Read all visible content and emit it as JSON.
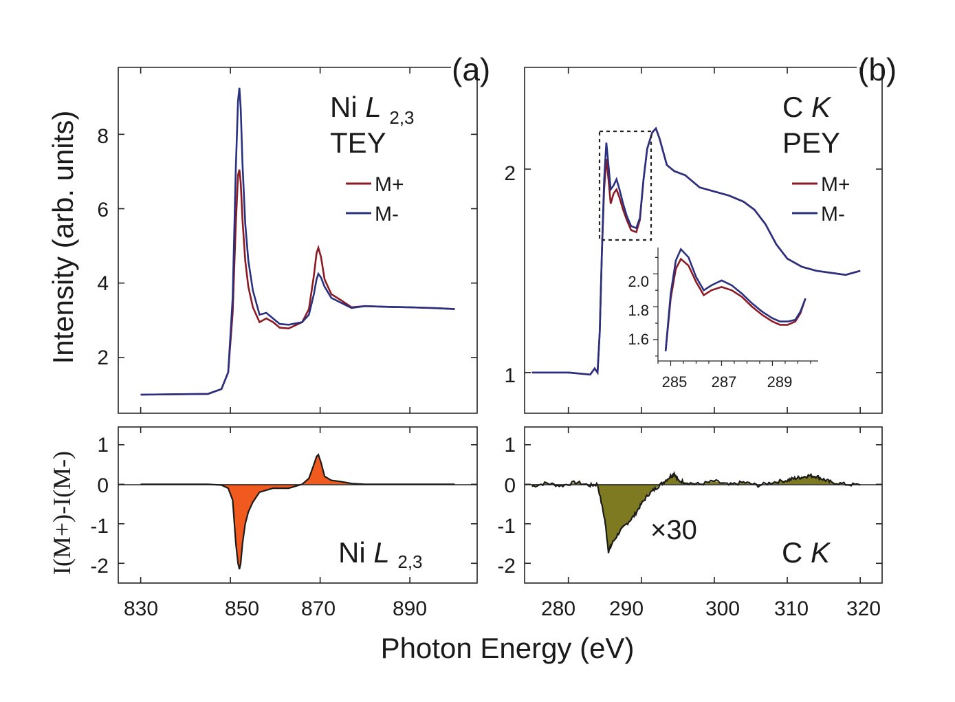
{
  "figure": {
    "xlabel": "Photon Energy (eV)",
    "top_ylabel": "Intensity (arb. units)",
    "bottom_ylabel": "I(M+)-I(M-)"
  },
  "panel_a": {
    "label": "(a)",
    "title_line1": "Ni",
    "title_italic": "L",
    "title_sub": "2,3",
    "title_line2": "TEY",
    "bottom_annot_main": "Ni",
    "bottom_annot_italic": "L",
    "bottom_annot_sub": "2,3"
  },
  "panel_b": {
    "label": "(b)",
    "title_line1": "C",
    "title_italic": "K",
    "title_line2": "PEY",
    "bottom_annot_main": "C",
    "bottom_annot_italic": "K",
    "scale_note": "×30"
  },
  "legend": {
    "m_plus": "M+",
    "m_minus": "M-"
  },
  "colors": {
    "m_plus": "#8b1a24",
    "m_minus": "#2a3080",
    "ni_fill": "#f05a1e",
    "c_fill": "#7d7a22",
    "diff_line": "#1a1a1a"
  },
  "chart_data": [
    {
      "id": "ni_xas",
      "type": "line",
      "title": "Ni L 2,3 TEY",
      "xlabel": "Photon Energy (eV)",
      "ylabel": "Intensity (arb. units)",
      "xlim": [
        825,
        905
      ],
      "ylim": [
        0.5,
        9.8
      ],
      "xticks": [
        "830",
        "850",
        "870",
        "890"
      ],
      "yticks": [
        "2",
        "4",
        "6",
        "8"
      ],
      "x": [
        830,
        845,
        848,
        849.5,
        850.5,
        851.2,
        851.7,
        852.0,
        852.3,
        852.7,
        853.3,
        854,
        855,
        856.5,
        858,
        859.5,
        861,
        863,
        866,
        867.5,
        868.6,
        869.2,
        869.6,
        870.2,
        871,
        872.5,
        874.5,
        877,
        880,
        885,
        890,
        895,
        900
      ],
      "series": [
        {
          "name": "M+",
          "values": [
            1.0,
            1.02,
            1.15,
            1.6,
            3.2,
            5.6,
            6.9,
            7.05,
            6.7,
            5.7,
            4.6,
            3.9,
            3.35,
            2.95,
            3.05,
            2.95,
            2.8,
            2.78,
            2.95,
            3.3,
            4.2,
            4.8,
            4.95,
            4.7,
            4.1,
            3.7,
            3.55,
            3.35,
            3.38,
            3.36,
            3.35,
            3.33,
            3.3
          ]
        },
        {
          "name": "M-",
          "values": [
            1.0,
            1.02,
            1.15,
            1.6,
            3.6,
            7.1,
            8.9,
            9.25,
            8.7,
            7.2,
            5.6,
            4.6,
            3.8,
            3.15,
            3.2,
            3.05,
            2.9,
            2.88,
            2.95,
            3.15,
            3.7,
            4.1,
            4.25,
            4.15,
            3.9,
            3.6,
            3.48,
            3.33,
            3.38,
            3.36,
            3.35,
            3.33,
            3.3
          ]
        }
      ]
    },
    {
      "id": "ni_xmcd",
      "type": "area",
      "ylabel": "I(M+)-I(M-)",
      "xlim": [
        825,
        905
      ],
      "ylim": [
        -2.5,
        1.45
      ],
      "xticks": [
        "830",
        "850",
        "870",
        "890"
      ],
      "yticks": [
        "1",
        "0",
        "-1",
        "-2"
      ],
      "x": [
        830,
        845,
        848,
        849.5,
        850.5,
        851.2,
        851.7,
        852.0,
        852.3,
        852.7,
        853.3,
        854,
        855,
        856.5,
        858,
        859.5,
        861,
        863,
        866,
        867.5,
        868.6,
        869.2,
        869.6,
        870.2,
        871,
        872.5,
        874.5,
        877,
        880,
        885,
        890,
        895,
        900
      ],
      "values": [
        0,
        0,
        -0.02,
        -0.1,
        -0.4,
        -1.5,
        -2.0,
        -2.15,
        -2.0,
        -1.5,
        -1.0,
        -0.7,
        -0.45,
        -0.2,
        -0.15,
        -0.1,
        -0.1,
        -0.1,
        0.0,
        0.15,
        0.5,
        0.7,
        0.75,
        0.55,
        0.2,
        0.1,
        0.07,
        0.02,
        0,
        0,
        0,
        0,
        0
      ]
    },
    {
      "id": "c_xas",
      "type": "line",
      "title": "C K PEY",
      "xlabel": "Photon Energy (eV)",
      "ylabel": "Intensity (arb. units)",
      "xlim": [
        274,
        323
      ],
      "ylim": [
        0.8,
        2.5
      ],
      "xticks": [
        "280",
        "290",
        "300",
        "310",
        "320"
      ],
      "yticks": [
        "1",
        "2"
      ],
      "x": [
        275,
        280,
        283,
        283.6,
        284,
        284.3,
        284.6,
        284.9,
        285.2,
        285.5,
        285.8,
        286.2,
        286.6,
        287.0,
        287.5,
        288.0,
        288.6,
        289.3,
        289.8,
        290.3,
        290.8,
        291.5,
        292.0,
        292.5,
        293.5,
        294.5,
        296,
        298,
        300,
        302,
        304,
        305.5,
        307,
        308.5,
        310,
        312,
        314,
        316,
        318,
        320
      ],
      "series": [
        {
          "name": "M+",
          "values": [
            1.0,
            1.0,
            0.99,
            1.02,
            1.0,
            1.2,
            1.6,
            1.9,
            2.05,
            1.95,
            1.83,
            1.88,
            1.9,
            1.86,
            1.8,
            1.75,
            1.7,
            1.69,
            1.75,
            1.95,
            2.1,
            2.18,
            2.2,
            2.15,
            2.02,
            1.99,
            1.97,
            1.91,
            1.89,
            1.87,
            1.84,
            1.8,
            1.73,
            1.63,
            1.56,
            1.52,
            1.5,
            1.49,
            1.48,
            1.5
          ]
        },
        {
          "name": "M-",
          "values": [
            1.0,
            1.0,
            0.99,
            1.02,
            1.0,
            1.2,
            1.6,
            1.95,
            2.13,
            2.02,
            1.9,
            1.92,
            1.95,
            1.9,
            1.83,
            1.77,
            1.72,
            1.71,
            1.76,
            1.95,
            2.1,
            2.18,
            2.2,
            2.15,
            2.02,
            1.99,
            1.97,
            1.91,
            1.89,
            1.87,
            1.84,
            1.8,
            1.73,
            1.63,
            1.56,
            1.52,
            1.5,
            1.49,
            1.48,
            1.5
          ]
        }
      ]
    },
    {
      "id": "c_xas_inset",
      "type": "line",
      "xlim": [
        284.5,
        290.8
      ],
      "ylim": [
        1.47,
        2.16
      ],
      "xticks": [
        "285",
        "287",
        "289"
      ],
      "yticks": [
        "1.6",
        "1.8",
        "2.0"
      ],
      "x": [
        284.8,
        285.0,
        285.2,
        285.4,
        285.7,
        286.0,
        286.3,
        286.6,
        287.0,
        287.4,
        287.8,
        288.2,
        288.6,
        289.0,
        289.3,
        289.6,
        289.9,
        290.1,
        290.3
      ],
      "series": [
        {
          "name": "M+",
          "values": [
            1.53,
            1.85,
            2.03,
            2.09,
            2.05,
            1.95,
            1.87,
            1.9,
            1.92,
            1.9,
            1.86,
            1.8,
            1.75,
            1.71,
            1.69,
            1.69,
            1.71,
            1.76,
            1.85
          ]
        },
        {
          "name": "M-",
          "values": [
            1.53,
            1.88,
            2.08,
            2.15,
            2.1,
            1.98,
            1.9,
            1.93,
            1.96,
            1.93,
            1.88,
            1.82,
            1.77,
            1.73,
            1.71,
            1.71,
            1.72,
            1.77,
            1.85
          ]
        }
      ]
    },
    {
      "id": "c_xmcd",
      "type": "area",
      "ylabel": "I(M+)-I(M-)",
      "annotation": "×30",
      "xlim": [
        274,
        323
      ],
      "ylim": [
        -2.5,
        1.45
      ],
      "xticks": [
        "280",
        "290",
        "300",
        "310",
        "320"
      ],
      "yticks": [
        "1",
        "0",
        "-1",
        "-2"
      ],
      "x": [
        275,
        277,
        279,
        281,
        283,
        284,
        285,
        285.5,
        286,
        287,
        288,
        289,
        290,
        291,
        292,
        293,
        294,
        294.5,
        295,
        296,
        298,
        300,
        302,
        304,
        306,
        308,
        310,
        311,
        312,
        313,
        314,
        315,
        316,
        318,
        320
      ],
      "values": [
        -0.05,
        0.03,
        -0.04,
        0.05,
        -0.03,
        0.0,
        -0.9,
        -1.7,
        -1.5,
        -1.2,
        -1.0,
        -0.8,
        -0.5,
        -0.25,
        -0.1,
        0.05,
        0.2,
        0.28,
        0.1,
        0.05,
        0.0,
        0.08,
        -0.02,
        0.05,
        -0.03,
        0.05,
        0.1,
        0.15,
        0.18,
        0.22,
        0.2,
        0.12,
        0.05,
        0.0,
        -0.02
      ]
    }
  ]
}
